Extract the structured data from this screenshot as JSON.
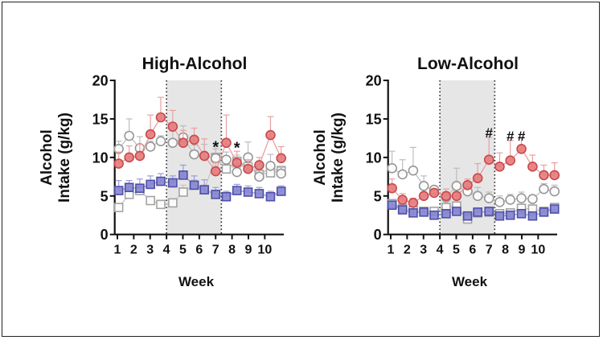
{
  "chart_data": [
    {
      "type": "line",
      "title": "High-Alcohol",
      "xlabel": "Week",
      "ylabel": "Alcohol Intake (g/kg)",
      "ylim": [
        0,
        20
      ],
      "xlim": [
        0.7,
        11.3
      ],
      "yticks": [
        0,
        5,
        10,
        15,
        20
      ],
      "xticks": [
        1,
        2,
        3,
        4,
        5,
        6,
        7,
        8,
        9,
        10
      ],
      "shaded_region": [
        4,
        7.35
      ],
      "grid": false,
      "x": [
        1.08,
        1.72,
        2.37,
        3.02,
        3.65,
        4.38,
        5.02,
        5.69,
        6.31,
        7.0,
        7.65,
        8.3,
        8.98,
        9.66,
        10.35,
        11.0
      ],
      "series": [
        {
          "style": "red-filled-circle",
          "color": "#e07070",
          "values": [
            9.2,
            10.0,
            10.2,
            13.0,
            15.2,
            14.0,
            11.9,
            12.3,
            10.2,
            8.2,
            11.9,
            9.3,
            8.5,
            9.0,
            12.9,
            9.9
          ],
          "error": [
            1.5,
            1.5,
            1.5,
            2.5,
            2.6,
            2.1,
            1.6,
            1.5,
            2.2,
            1.1,
            3.6,
            1.5,
            1.2,
            1.0,
            2.4,
            1.5
          ]
        },
        {
          "style": "gray-open-circle",
          "color": "#999999",
          "values": [
            11.1,
            12.8,
            11.2,
            11.4,
            12.1,
            11.9,
            12.6,
            10.4,
            10.2,
            9.9,
            9.7,
            8.1,
            10.0,
            7.5,
            8.9,
            7.9
          ],
          "error": [
            1.0,
            2.2,
            1.5,
            0.7,
            0.7,
            1.5,
            1.5,
            1.2,
            1.5,
            1.2,
            1.0,
            1.0,
            2.0,
            1.0,
            1.5,
            0.8
          ]
        },
        {
          "style": "blue-filled-square",
          "color": "#7b7bcc",
          "values": [
            5.7,
            6.1,
            6.0,
            6.5,
            6.9,
            6.7,
            7.7,
            6.4,
            5.8,
            5.2,
            4.9,
            5.7,
            5.5,
            5.3,
            4.9,
            5.6
          ],
          "error": [
            1.3,
            0.9,
            1.2,
            1.1,
            1.0,
            0.9,
            1.3,
            1.2,
            1.3,
            0.9,
            0.7,
            0.8,
            0.8,
            0.8,
            0.7,
            0.7
          ]
        },
        {
          "style": "gray-open-square",
          "color": "#a0a0a0",
          "values": [
            3.5,
            5.2,
            5.7,
            4.4,
            3.9,
            4.1,
            5.5,
            6.4,
            5.8,
            10.0,
            8.5,
            9.5,
            8.8,
            7.8,
            8.0,
            8.3
          ],
          "error": [
            0.5,
            0.6,
            0.5,
            0.5,
            0.4,
            0.5,
            0.9,
            0.7,
            0.6,
            1.4,
            1.0,
            0.8,
            0.6,
            0.5,
            0.6,
            0.5
          ]
        }
      ],
      "annotations": [
        {
          "text": "*",
          "x": 7.0,
          "y": 11.9
        },
        {
          "text": "*",
          "x": 8.3,
          "y": 11.8
        }
      ]
    },
    {
      "type": "line",
      "title": "Low-Alcohol",
      "xlabel": "Week",
      "ylabel": "Alcohol Intake (g/kg)",
      "ylim": [
        0,
        20
      ],
      "xlim": [
        0.7,
        11.3
      ],
      "yticks": [
        0,
        5,
        10,
        15,
        20
      ],
      "xticks": [
        1,
        2,
        3,
        4,
        5,
        6,
        7,
        8,
        9,
        10
      ],
      "shaded_region": [
        4,
        7.35
      ],
      "grid": false,
      "x": [
        1.08,
        1.72,
        2.37,
        3.02,
        3.65,
        4.38,
        5.02,
        5.69,
        6.31,
        7.0,
        7.65,
        8.3,
        8.98,
        9.66,
        10.35,
        11.0
      ],
      "series": [
        {
          "style": "red-filled-circle",
          "color": "#e07070",
          "values": [
            6.0,
            4.5,
            4.1,
            5.0,
            5.4,
            5.0,
            5.0,
            6.4,
            7.3,
            9.7,
            8.8,
            9.6,
            11.1,
            8.8,
            7.7,
            7.7
          ],
          "error": [
            1.2,
            0.8,
            0.6,
            0.5,
            0.4,
            0.9,
            0.5,
            0.8,
            1.9,
            2.9,
            1.8,
            2.6,
            1.5,
            1.5,
            1.3,
            1.6
          ]
        },
        {
          "style": "gray-open-circle",
          "color": "#999999",
          "values": [
            8.6,
            7.8,
            8.3,
            6.3,
            5.8,
            4.8,
            6.3,
            5.6,
            5.0,
            4.7,
            4.2,
            4.5,
            4.7,
            4.6,
            5.9,
            5.6
          ],
          "error": [
            2.2,
            1.9,
            3.0,
            1.3,
            0.5,
            0.6,
            2.3,
            0.5,
            1.1,
            0.8,
            0.8,
            0.7,
            0.8,
            0.5,
            0.7,
            0.8
          ]
        },
        {
          "style": "blue-filled-square",
          "color": "#7b7bcc",
          "values": [
            3.8,
            3.2,
            2.8,
            2.9,
            2.5,
            2.7,
            3.0,
            2.4,
            2.9,
            3.0,
            2.4,
            2.5,
            2.7,
            2.4,
            2.9,
            3.3
          ],
          "error": [
            0.5,
            0.4,
            0.4,
            0.4,
            0.3,
            0.4,
            0.4,
            0.3,
            0.4,
            0.4,
            0.3,
            0.3,
            0.4,
            0.3,
            0.4,
            0.5
          ]
        },
        {
          "style": "gray-open-square",
          "color": "#a0a0a0",
          "values": [
            4.0,
            3.4,
            3.1,
            3.0,
            3.0,
            3.5,
            3.7,
            2.0,
            2.8,
            2.9,
            2.7,
            2.8,
            3.4,
            3.3,
            3.0,
            3.5
          ],
          "error": [
            0.4,
            0.4,
            0.3,
            0.3,
            0.3,
            0.4,
            0.4,
            0.3,
            0.3,
            0.3,
            0.3,
            0.3,
            0.4,
            0.4,
            0.3,
            0.4
          ]
        }
      ],
      "annotations": [
        {
          "text": "#",
          "x": 7.0,
          "y": 13.0
        },
        {
          "text": "#",
          "x": 8.3,
          "y": 12.6
        },
        {
          "text": "#",
          "x": 8.98,
          "y": 12.6
        }
      ]
    }
  ]
}
